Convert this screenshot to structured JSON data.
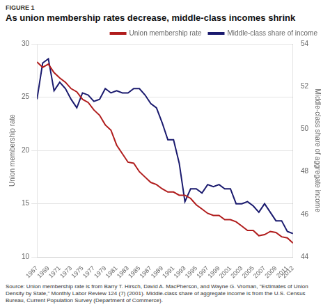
{
  "chart_data": {
    "type": "line",
    "figure_label": "FIGURE 1",
    "title": "As union membership rates decrease, middle-class incomes shrink",
    "source_text": "Source: Union membership rate is from Barry T. Hirsch, David A. MacPherson, and Wayne G. Vroman, \"Estimates of Union Density by State,\"\nMonthly Labor Review 124 (7) (2001). Middle-class share of aggregate income is from the U.S. Census Bureau, Current Population Survey\n(Department of Commerce).",
    "x": [
      1967,
      1968,
      1969,
      1970,
      1971,
      1972,
      1973,
      1974,
      1975,
      1976,
      1977,
      1978,
      1979,
      1980,
      1981,
      1982,
      1983,
      1984,
      1985,
      1986,
      1987,
      1988,
      1989,
      1990,
      1991,
      1992,
      1993,
      1994,
      1995,
      1996,
      1997,
      1998,
      1999,
      2000,
      2001,
      2002,
      2003,
      2004,
      2005,
      2006,
      2007,
      2008,
      2009,
      2010,
      2011,
      2012
    ],
    "series": [
      {
        "name": "Union membership rate",
        "color": "#b01c1c",
        "axis": "y",
        "values": [
          28.3,
          27.8,
          28.1,
          27.3,
          26.8,
          26.4,
          25.8,
          25.5,
          24.8,
          24.5,
          23.8,
          23.3,
          22.4,
          21.9,
          20.5,
          19.7,
          18.9,
          18.8,
          18.0,
          17.5,
          17.0,
          16.8,
          16.4,
          16.1,
          16.1,
          15.8,
          15.8,
          15.5,
          14.9,
          14.5,
          14.1,
          13.9,
          13.9,
          13.5,
          13.5,
          13.3,
          12.9,
          12.5,
          12.5,
          12.0,
          12.1,
          12.4,
          12.3,
          11.9,
          11.8,
          11.3
        ]
      },
      {
        "name": "Middle-class share of income",
        "color": "#1a1a6e",
        "axis": "y2",
        "values": [
          51.4,
          53.1,
          53.3,
          51.8,
          52.2,
          51.9,
          51.4,
          51.0,
          51.7,
          51.6,
          51.3,
          51.4,
          51.9,
          51.7,
          51.8,
          51.7,
          51.7,
          51.9,
          51.9,
          51.6,
          51.2,
          51.0,
          50.3,
          49.5,
          49.5,
          48.4,
          46.6,
          47.2,
          47.2,
          47.0,
          47.4,
          47.3,
          47.4,
          47.2,
          47.2,
          46.5,
          46.5,
          46.6,
          46.4,
          46.1,
          46.5,
          46.1,
          45.7,
          45.7,
          45.2,
          45.1
        ]
      }
    ],
    "xlim": [
      1967,
      2012
    ],
    "xticks": [
      1967,
      1969,
      1971,
      1973,
      1975,
      1977,
      1979,
      1981,
      1983,
      1985,
      1987,
      1989,
      1991,
      1993,
      1995,
      1997,
      1999,
      2001,
      2003,
      2005,
      2007,
      2009,
      2011,
      2012
    ],
    "ylim": [
      10,
      30
    ],
    "yticks": [
      10,
      15,
      20,
      25,
      30
    ],
    "y2lim": [
      44,
      54
    ],
    "y2ticks": [
      44,
      46,
      48,
      50,
      52,
      54
    ],
    "ylabel": "Union membership rate",
    "y2label": "Middle-class share of aggregate income",
    "grid": "y",
    "legend": "upper right"
  }
}
